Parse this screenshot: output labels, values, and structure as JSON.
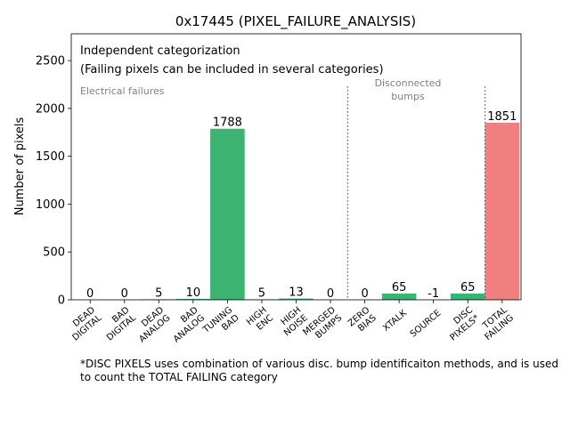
{
  "chart_data": {
    "type": "bar",
    "title": "0x17445 (PIXEL_FAILURE_ANALYSIS)",
    "ylabel": "Number of pixels",
    "xlabel": "",
    "ylim": [
      0,
      2780
    ],
    "yticks": [
      0,
      500,
      1000,
      1500,
      2000,
      2500
    ],
    "grid": false,
    "categories": [
      "DEAD\nDIGITAL",
      "BAD\nDIGITAL",
      "DEAD\nANALOG",
      "BAD\nANALOG",
      "TUNING\nBAD",
      "HIGH\nENC",
      "HIGH\nNOISE",
      "MERGED\nBUMPS",
      "ZERO\nBIAS",
      "XTALK",
      "SOURCE",
      "DISC\nPIXELS*",
      "TOTAL\nFAILING"
    ],
    "values": [
      0,
      0,
      5,
      10,
      1788,
      5,
      13,
      0,
      0,
      65,
      -1,
      65,
      1851
    ],
    "value_labels": [
      "0",
      "0",
      "5",
      "10",
      "1788",
      "5",
      "13",
      "0",
      "0",
      "65",
      "-1",
      "65",
      "1851"
    ],
    "bar_colors": [
      "#3cb371",
      "#3cb371",
      "#3cb371",
      "#3cb371",
      "#3cb371",
      "#3cb371",
      "#3cb371",
      "#3cb371",
      "#3cb371",
      "#3cb371",
      "#3cb371",
      "#3cb371",
      "#f08080"
    ],
    "annotations": {
      "line1": "Independent categorization",
      "line2": "(Failing pixels can be included in several categories)",
      "electrical": "Electrical failures",
      "disconnected_1": "Disconnected",
      "disconnected_2": "bumps"
    },
    "dividers_after_category_index": [
      7,
      11
    ]
  },
  "footnote": "*DISC PIXELS uses combination of various disc. bump identificaiton methods, and is used to count the TOTAL FAILING category"
}
